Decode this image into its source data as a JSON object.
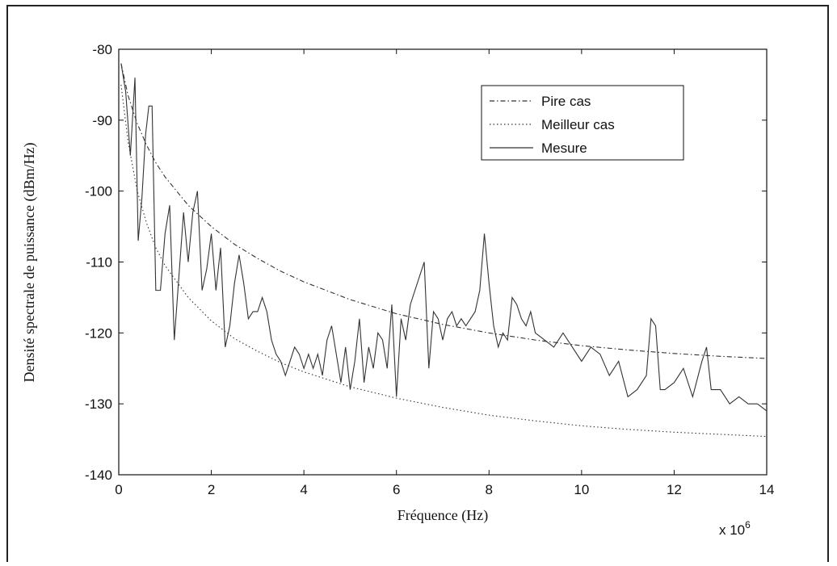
{
  "chart_data": {
    "type": "line",
    "xlabel": "Fréquence (Hz)",
    "ylabel": "Densité spectrale de puissance (dBm/Hz)",
    "x_multiplier_base": "x 10",
    "x_multiplier_exp": "6",
    "xlim": [
      0,
      14
    ],
    "ylim": [
      -140,
      -80
    ],
    "x_ticks": [
      "0",
      "2",
      "4",
      "6",
      "8",
      "10",
      "12",
      "14"
    ],
    "y_ticks": [
      "-80",
      "-90",
      "-100",
      "-110",
      "-120",
      "-130",
      "-140"
    ],
    "x_tick_values": [
      0,
      2,
      4,
      6,
      8,
      10,
      12,
      14
    ],
    "y_tick_values": [
      -80,
      -90,
      -100,
      -110,
      -120,
      -130,
      -140
    ],
    "grid": false,
    "legend_position": "top-right",
    "series": [
      {
        "name": "Pire  cas",
        "style": "dashdot",
        "x": [
          0.05,
          0.2,
          0.4,
          0.6,
          0.8,
          1.0,
          1.5,
          2.0,
          2.5,
          3.0,
          3.5,
          4.0,
          5.0,
          6.0,
          7.0,
          8.0,
          9.0,
          10.0,
          11.0,
          12.0,
          13.0,
          14.0
        ],
        "y": [
          -82,
          -86.5,
          -90.5,
          -93.5,
          -96,
          -98,
          -102,
          -105,
          -107.5,
          -109.5,
          -111.3,
          -112.8,
          -115.3,
          -117.3,
          -118.8,
          -120,
          -121,
          -121.8,
          -122.4,
          -122.9,
          -123.3,
          -123.6
        ]
      },
      {
        "name": "Meilleur cas",
        "style": "dotted",
        "x": [
          0.05,
          0.2,
          0.4,
          0.6,
          0.8,
          1.0,
          1.5,
          2.0,
          2.5,
          3.0,
          3.5,
          4.0,
          5.0,
          6.0,
          7.0,
          8.0,
          9.0,
          10.0,
          11.0,
          12.0,
          13.0,
          14.0
        ],
        "y": [
          -85,
          -93,
          -100,
          -104.5,
          -108,
          -110.5,
          -115,
          -118.3,
          -120.8,
          -122.6,
          -124.2,
          -125.5,
          -127.6,
          -129.2,
          -130.5,
          -131.6,
          -132.4,
          -133.1,
          -133.6,
          -134,
          -134.3,
          -134.6
        ]
      },
      {
        "name": "Mesure",
        "style": "solid",
        "x": [
          0.05,
          0.15,
          0.25,
          0.35,
          0.42,
          0.5,
          0.58,
          0.65,
          0.72,
          0.8,
          0.9,
          1.0,
          1.1,
          1.2,
          1.3,
          1.4,
          1.5,
          1.6,
          1.7,
          1.8,
          1.9,
          2.0,
          2.1,
          2.2,
          2.3,
          2.4,
          2.5,
          2.6,
          2.7,
          2.8,
          2.9,
          3.0,
          3.1,
          3.2,
          3.3,
          3.4,
          3.5,
          3.6,
          3.7,
          3.8,
          3.9,
          4.0,
          4.1,
          4.2,
          4.3,
          4.4,
          4.5,
          4.6,
          4.7,
          4.8,
          4.9,
          5.0,
          5.1,
          5.2,
          5.3,
          5.4,
          5.5,
          5.6,
          5.7,
          5.8,
          5.9,
          6.0,
          6.1,
          6.2,
          6.3,
          6.4,
          6.5,
          6.6,
          6.7,
          6.8,
          6.9,
          7.0,
          7.1,
          7.2,
          7.3,
          7.4,
          7.5,
          7.6,
          7.7,
          7.8,
          7.9,
          8.0,
          8.1,
          8.2,
          8.3,
          8.4,
          8.5,
          8.6,
          8.7,
          8.8,
          8.9,
          9.0,
          9.2,
          9.4,
          9.6,
          9.8,
          10.0,
          10.2,
          10.4,
          10.6,
          10.8,
          11.0,
          11.2,
          11.4,
          11.5,
          11.6,
          11.7,
          11.8,
          12.0,
          12.2,
          12.4,
          12.6,
          12.7,
          12.8,
          13.0,
          13.2,
          13.4,
          13.6,
          13.8,
          14.0
        ],
        "y": [
          -82,
          -86,
          -95,
          -84,
          -107,
          -101,
          -92,
          -88,
          -88,
          -114,
          -114,
          -106,
          -102,
          -121,
          -112,
          -103,
          -110,
          -103,
          -100,
          -114,
          -111,
          -106,
          -114,
          -108,
          -122,
          -119,
          -113,
          -109,
          -113,
          -118,
          -117,
          -117,
          -115,
          -117,
          -121,
          -123,
          -124,
          -126,
          -124,
          -122,
          -123,
          -125,
          -123,
          -125,
          -123,
          -126,
          -121,
          -119,
          -123,
          -127,
          -122,
          -128,
          -124,
          -118,
          -127,
          -122,
          -125,
          -120,
          -121,
          -125,
          -116,
          -129,
          -118,
          -121,
          -116,
          -114,
          -112,
          -110,
          -125,
          -117,
          -118,
          -121,
          -118,
          -117,
          -119,
          -118,
          -119,
          -118,
          -117,
          -114,
          -106,
          -113,
          -119,
          -122,
          -120,
          -121,
          -115,
          -116,
          -118,
          -119,
          -117,
          -120,
          -121,
          -122,
          -120,
          -122,
          -124,
          -122,
          -123,
          -126,
          -124,
          -129,
          -128,
          -126,
          -118,
          -119,
          -128,
          -128,
          -127,
          -125,
          -129,
          -124,
          -122,
          -128,
          -128,
          -130,
          -129,
          -130,
          -130,
          -131
        ]
      }
    ]
  }
}
